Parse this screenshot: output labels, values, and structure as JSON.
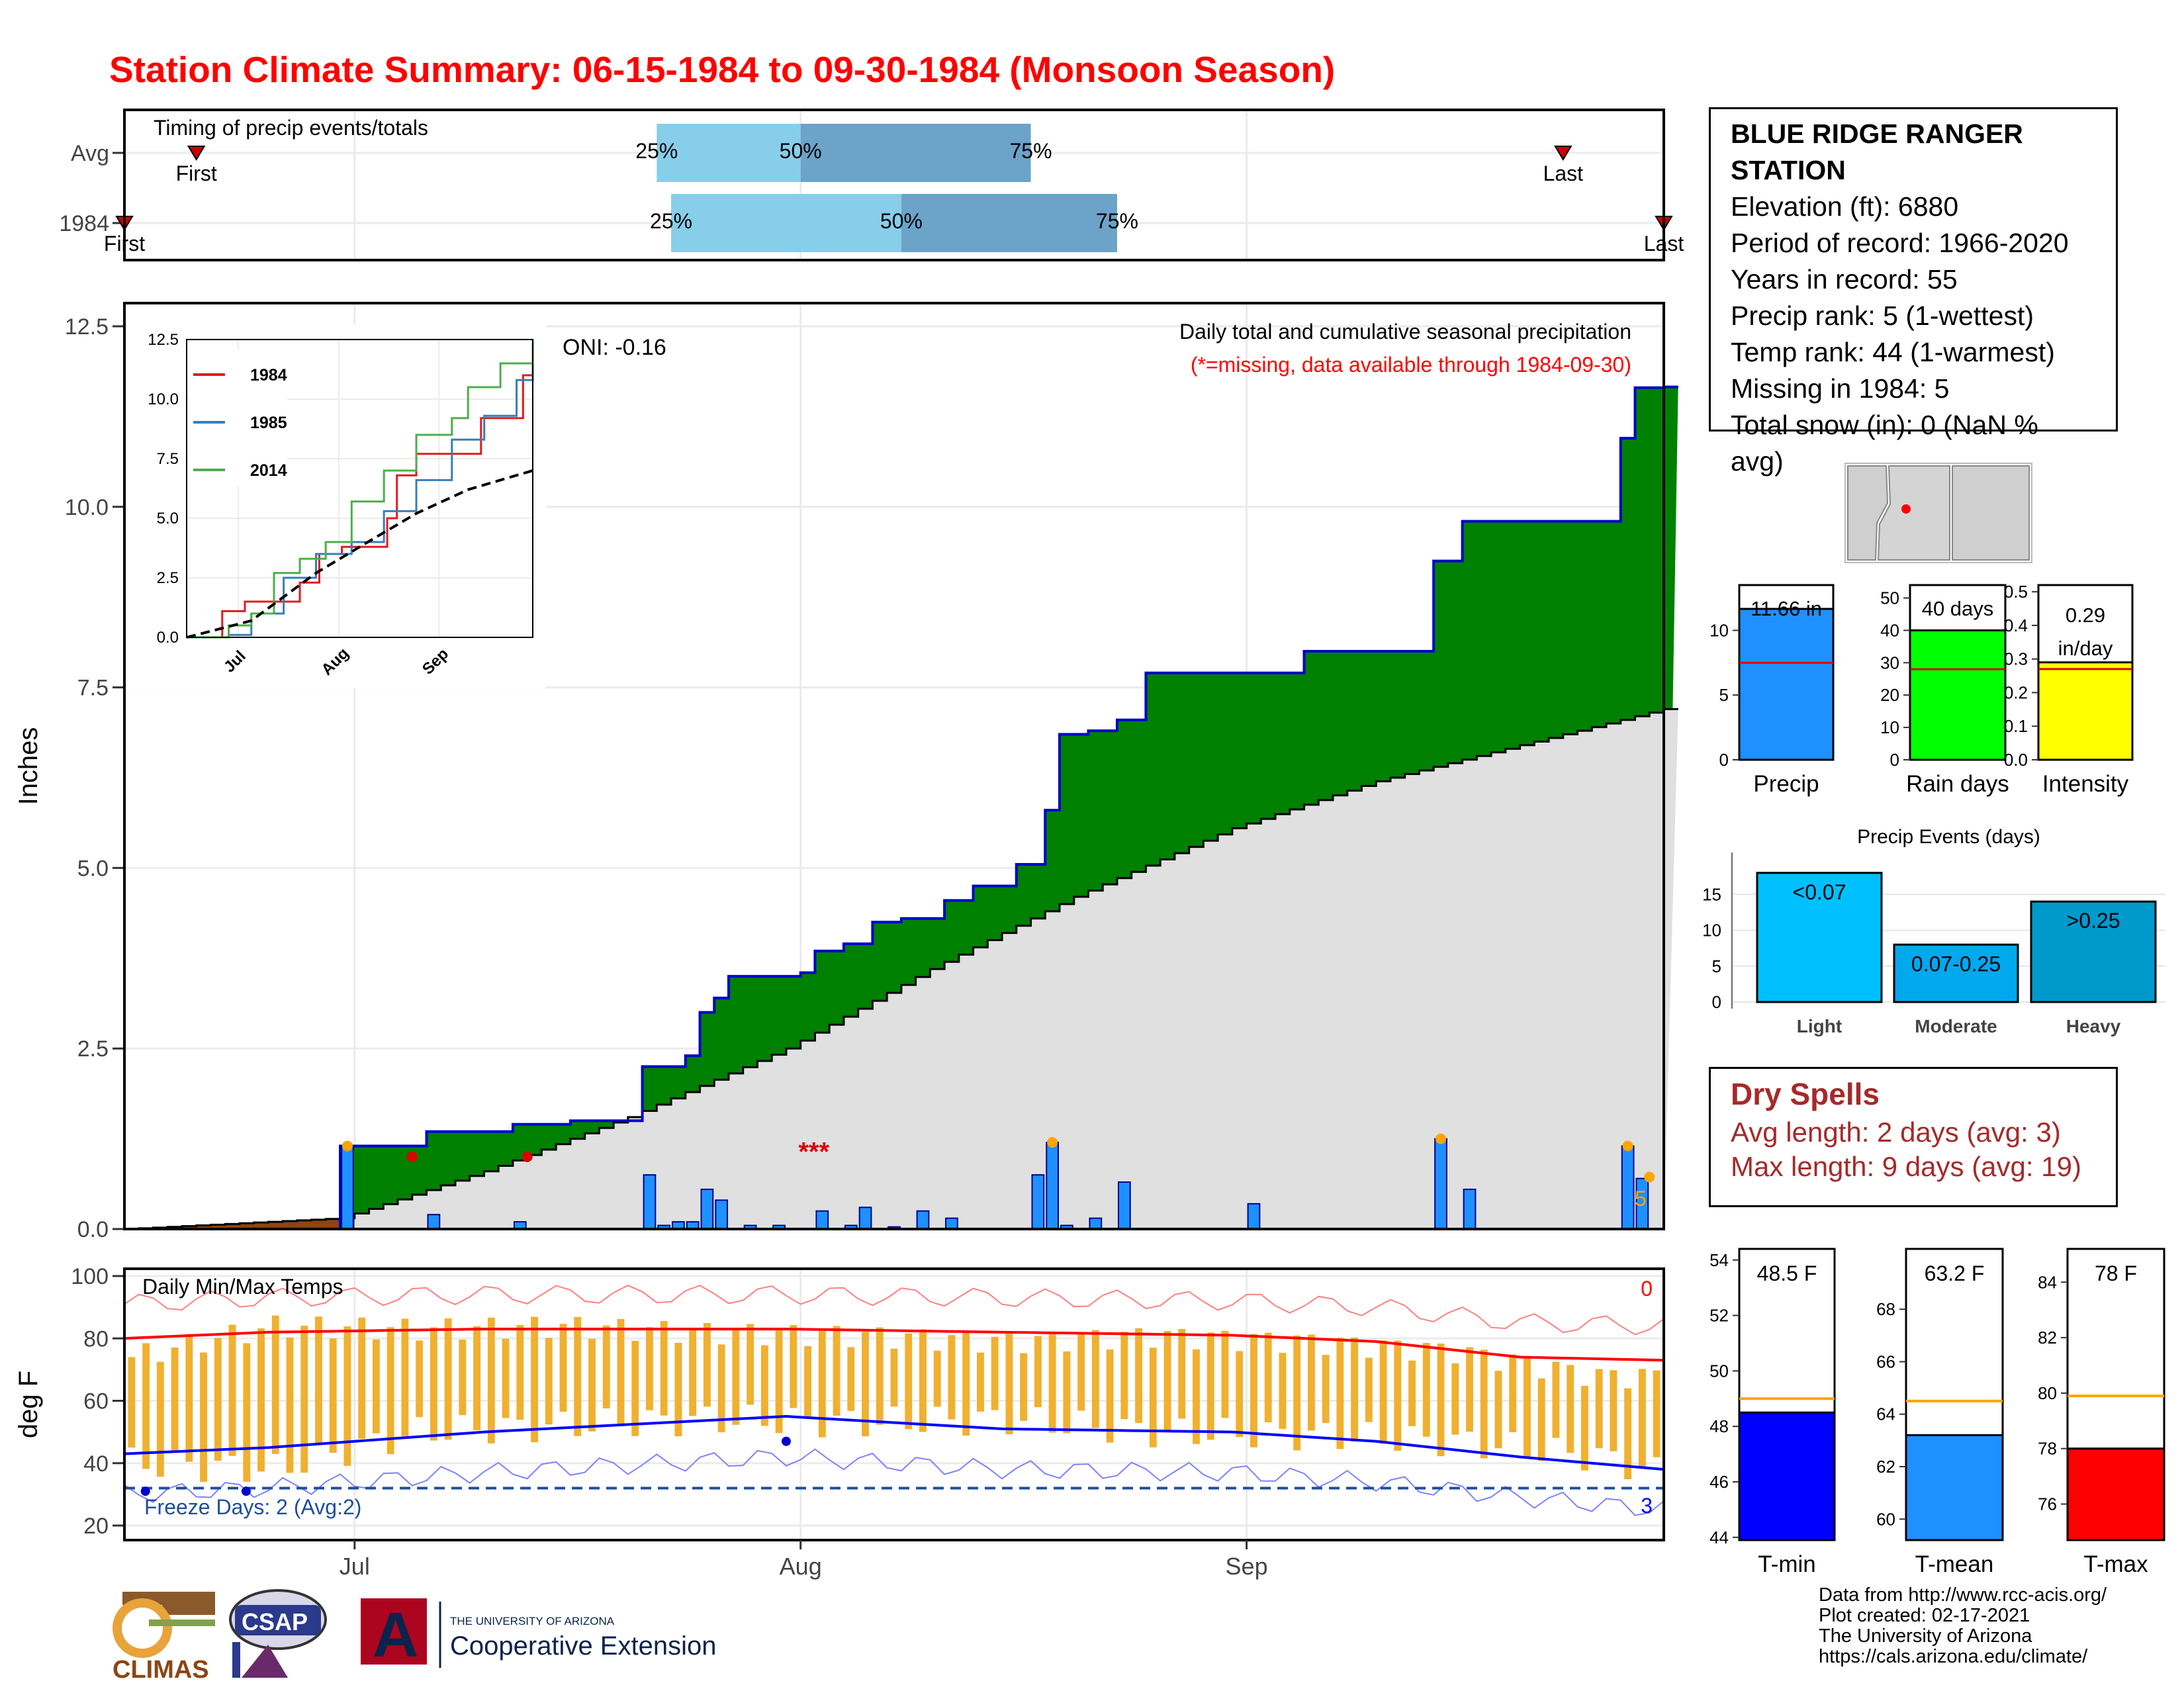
{
  "page": {
    "title": "Station Climate Summary: 06-15-1984 to 09-30-1984 (Monsoon Season)",
    "colors": {
      "title": "#ff0000",
      "precip_green": "#008000",
      "avg_fill": "#e0e0e0",
      "bar_blue": "#1e90ff",
      "tmax_red": "#ff0000",
      "tmin_blue": "#0000ff",
      "temp_bar": "#f0b030"
    }
  },
  "station": {
    "title_line1": "BLUE RIDGE RANGER",
    "title_line2": "STATION",
    "elevation": "Elevation (ft): 6880",
    "period": "Period of record: 1966-2020",
    "years": "Years in record: 55",
    "precip_rank": "Precip rank: 5 (1-wettest)",
    "temp_rank": "Temp rank: 44 (1-warmest)",
    "missing": "Missing in 1984: 5",
    "snow": "Total snow (in): 0 (NaN % avg)"
  },
  "dry_spells": {
    "title": "Dry Spells",
    "avg": "Avg length: 2 days (avg: 3)",
    "max": "Max length: 9 days (avg: 19)"
  },
  "credits": {
    "line1": "Data from http://www.rcc-acis.org/",
    "line2": "Plot created: 02-17-2021",
    "line3": "The University of Arizona",
    "line4": "https://cals.arizona.edu/climate/"
  },
  "logos": {
    "climas": "CLIMAS",
    "csap": "CSAP",
    "ua_line1": "THE UNIVERSITY OF ARIZONA",
    "ua_line2": "Cooperative Extension",
    "ua_letter": "A"
  },
  "chart_data": [
    {
      "id": "timing",
      "type": "bar",
      "title": "Timing of precip events/totals",
      "categories": [
        "Avg",
        "1984"
      ],
      "x_ticks": [
        "Jul",
        "Aug",
        "Sep"
      ],
      "quantile_labels": [
        "25%",
        "50%",
        "75%"
      ],
      "markers": [
        "First",
        "Last"
      ],
      "avg": {
        "first": "06-20",
        "q25": "07-22",
        "q50": "08-01",
        "q75": "08-17",
        "last": "09-23"
      },
      "year": {
        "first": "06-15",
        "q25": "07-23",
        "q50": "08-08",
        "q75": "08-23",
        "last": "09-30"
      }
    },
    {
      "id": "precip",
      "type": "area",
      "title": "Daily total and cumulative seasonal precipitation",
      "subtitle": "(*=missing, data available through 1984-09-30)",
      "oni": "ONI: -0.16",
      "ylabel": "Inches",
      "ylim": [
        0,
        12.5
      ],
      "y_ticks": [
        "0.0",
        "2.5",
        "5.0",
        "7.5",
        "10.0",
        "12.5"
      ],
      "x_ticks": [
        "Jul",
        "Aug",
        "Sep"
      ],
      "missing_marker": "***",
      "count_label": "5",
      "cumulative_1984": [
        [
          "06-15",
          0.0
        ],
        [
          "06-30",
          1.15
        ],
        [
          "07-05",
          1.15
        ],
        [
          "07-06",
          1.35
        ],
        [
          "07-12",
          1.45
        ],
        [
          "07-16",
          1.5
        ],
        [
          "07-21",
          2.25
        ],
        [
          "07-24",
          2.4
        ],
        [
          "07-25",
          3.0
        ],
        [
          "07-26",
          3.2
        ],
        [
          "07-27",
          3.5
        ],
        [
          "08-01",
          3.55
        ],
        [
          "08-02",
          3.85
        ],
        [
          "08-04",
          3.95
        ],
        [
          "08-06",
          4.25
        ],
        [
          "08-08",
          4.3
        ],
        [
          "08-11",
          4.55
        ],
        [
          "08-13",
          4.75
        ],
        [
          "08-16",
          5.05
        ],
        [
          "08-18",
          5.8
        ],
        [
          "08-19",
          6.85
        ],
        [
          "08-21",
          6.9
        ],
        [
          "08-23",
          7.05
        ],
        [
          "08-25",
          7.7
        ],
        [
          "09-05",
          8.0
        ],
        [
          "09-14",
          9.25
        ],
        [
          "09-16",
          9.8
        ],
        [
          "09-27",
          10.95
        ],
        [
          "09-28",
          11.65
        ],
        [
          "09-30",
          11.66
        ]
      ],
      "avg_cumulative": [
        [
          "06-15",
          0.0
        ],
        [
          "06-30",
          0.15
        ],
        [
          "07-10",
          0.8
        ],
        [
          "07-20",
          1.55
        ],
        [
          "07-31",
          2.5
        ],
        [
          "08-10",
          3.6
        ],
        [
          "08-20",
          4.6
        ],
        [
          "08-31",
          5.55
        ],
        [
          "09-10",
          6.2
        ],
        [
          "09-20",
          6.7
        ],
        [
          "09-30",
          7.2
        ]
      ],
      "daily_1984": [
        [
          "06-30",
          1.15
        ],
        [
          "07-06",
          0.2
        ],
        [
          "07-12",
          0.1
        ],
        [
          "07-21",
          0.75
        ],
        [
          "07-22",
          0.05
        ],
        [
          "07-23",
          0.1
        ],
        [
          "07-24",
          0.1
        ],
        [
          "07-25",
          0.55
        ],
        [
          "07-26",
          0.4
        ],
        [
          "07-28",
          0.05
        ],
        [
          "07-30",
          0.05
        ],
        [
          "08-02",
          0.25
        ],
        [
          "08-04",
          0.05
        ],
        [
          "08-05",
          0.3
        ],
        [
          "08-07",
          0.03
        ],
        [
          "08-09",
          0.25
        ],
        [
          "08-11",
          0.15
        ],
        [
          "08-17",
          0.75
        ],
        [
          "08-18",
          1.2
        ],
        [
          "08-19",
          0.05
        ],
        [
          "08-21",
          0.15
        ],
        [
          "08-23",
          0.65
        ],
        [
          "09-01",
          0.35
        ],
        [
          "09-14",
          1.25
        ],
        [
          "09-16",
          0.55
        ],
        [
          "09-27",
          1.15
        ],
        [
          "09-28",
          0.7
        ]
      ],
      "inset": {
        "ylim": [
          0,
          12.5
        ],
        "y_ticks": [
          "0.0",
          "2.5",
          "5.0",
          "7.5",
          "10.0",
          "12.5"
        ],
        "x_ticks": [
          "Jul",
          "Aug",
          "Sep"
        ],
        "series": [
          {
            "name": "1984",
            "color": "#e41a1c",
            "values": [
              [
                "06-15",
                0
              ],
              [
                "06-26",
                1.1
              ],
              [
                "07-03",
                1.5
              ],
              [
                "07-12",
                1.5
              ],
              [
                "07-20",
                2.3
              ],
              [
                "07-26",
                3.5
              ],
              [
                "08-02",
                3.8
              ],
              [
                "08-16",
                5.0
              ],
              [
                "08-19",
                6.8
              ],
              [
                "08-25",
                7.7
              ],
              [
                "09-14",
                9.2
              ],
              [
                "09-27",
                11.0
              ],
              [
                "09-30",
                11.7
              ]
            ]
          },
          {
            "name": "1985",
            "color": "#377eb8",
            "values": [
              [
                "06-15",
                0
              ],
              [
                "06-28",
                0.1
              ],
              [
                "07-05",
                1.0
              ],
              [
                "07-15",
                2.5
              ],
              [
                "07-25",
                3.5
              ],
              [
                "08-05",
                4.0
              ],
              [
                "08-15",
                5.3
              ],
              [
                "08-25",
                6.6
              ],
              [
                "09-05",
                8.3
              ],
              [
                "09-15",
                9.3
              ],
              [
                "09-25",
                10.8
              ],
              [
                "09-30",
                11.6
              ]
            ]
          },
          {
            "name": "2014",
            "color": "#4daf4a",
            "values": [
              [
                "06-15",
                0
              ],
              [
                "06-28",
                0.5
              ],
              [
                "07-05",
                1.0
              ],
              [
                "07-12",
                2.7
              ],
              [
                "07-20",
                3.3
              ],
              [
                "07-28",
                4.0
              ],
              [
                "08-05",
                5.7
              ],
              [
                "08-15",
                7.0
              ],
              [
                "08-25",
                8.5
              ],
              [
                "09-05",
                9.2
              ],
              [
                "09-10",
                10.5
              ],
              [
                "09-20",
                11.5
              ],
              [
                "09-30",
                12.5
              ]
            ]
          }
        ],
        "avg": [
          [
            "06-15",
            0
          ],
          [
            "07-05",
            0.7
          ],
          [
            "07-25",
            2.7
          ],
          [
            "08-10",
            4.0
          ],
          [
            "08-25",
            5.2
          ],
          [
            "09-10",
            6.2
          ],
          [
            "09-30",
            7.0
          ]
        ]
      }
    },
    {
      "id": "temps",
      "type": "line",
      "title": "Daily Min/Max Temps",
      "ylabel": "deg F",
      "ylim": [
        17,
        101
      ],
      "y_ticks": [
        "20",
        "40",
        "60",
        "80",
        "100"
      ],
      "x_ticks": [
        "Jul",
        "Aug",
        "Sep"
      ],
      "freeze_label": "Freeze Days: 2 (Avg:2)",
      "hot_count": "0",
      "cold_count": "3",
      "freeze_line": 32,
      "avg_max": [
        [
          "06-15",
          80
        ],
        [
          "06-25",
          82
        ],
        [
          "07-10",
          83
        ],
        [
          "07-31",
          83
        ],
        [
          "08-15",
          82
        ],
        [
          "08-31",
          81
        ],
        [
          "09-10",
          79
        ],
        [
          "09-20",
          74
        ],
        [
          "09-30",
          73
        ]
      ],
      "avg_min": [
        [
          "06-15",
          43
        ],
        [
          "06-25",
          45
        ],
        [
          "07-10",
          50
        ],
        [
          "07-31",
          55
        ],
        [
          "08-15",
          51
        ],
        [
          "08-31",
          50
        ],
        [
          "09-10",
          47
        ],
        [
          "09-20",
          42
        ],
        [
          "09-30",
          38
        ]
      ],
      "daily_range_series": [
        {
          "name": "tmax",
          "values": [
            [
              "06-15",
              74
            ],
            [
              "06-25",
              84
            ],
            [
              "07-05",
              83
            ],
            [
              "07-15",
              84
            ],
            [
              "07-25",
              82
            ],
            [
              "08-05",
              81
            ],
            [
              "08-15",
              79
            ],
            [
              "08-25",
              81
            ],
            [
              "09-05",
              79
            ],
            [
              "09-15",
              76
            ],
            [
              "09-25",
              68
            ],
            [
              "09-30",
              68
            ]
          ]
        },
        {
          "name": "tmin",
          "values": [
            [
              "06-15",
              40
            ],
            [
              "06-25",
              38
            ],
            [
              "07-05",
              50
            ],
            [
              "07-15",
              52
            ],
            [
              "07-25",
              54
            ],
            [
              "08-05",
              53
            ],
            [
              "08-15",
              54
            ],
            [
              "08-25",
              50
            ],
            [
              "09-05",
              49
            ],
            [
              "09-15",
              47
            ],
            [
              "09-25",
              42
            ],
            [
              "09-30",
              36
            ]
          ]
        }
      ]
    },
    {
      "id": "totals",
      "type": "bar",
      "panels": [
        {
          "label": "Precip",
          "value_label": "11.66 in",
          "value": 11.66,
          "avg": 7.5,
          "ylim": [
            0,
            13.5
          ],
          "ticks": [
            "0",
            "5",
            "10"
          ],
          "color": "#1e90ff"
        },
        {
          "label": "Rain days",
          "value_label": "40 days",
          "value": 40,
          "avg": 28,
          "ylim": [
            0,
            54
          ],
          "ticks": [
            "0",
            "10",
            "20",
            "30",
            "40",
            "50"
          ],
          "color": "#00ff00"
        },
        {
          "label": "Intensity",
          "value_label_1": "0.29",
          "value_label_2": "in/day",
          "value": 0.29,
          "avg": 0.27,
          "ylim": [
            0,
            0.52
          ],
          "ticks": [
            "0.0",
            "0.1",
            "0.2",
            "0.3",
            "0.4",
            "0.5"
          ],
          "color": "#ffff00"
        }
      ]
    },
    {
      "id": "events",
      "type": "bar",
      "title": "Precip Events (days)",
      "categories": [
        "Light",
        "Moderate",
        "Heavy"
      ],
      "bar_labels": [
        "<0.07",
        "0.07-0.25",
        ">0.25"
      ],
      "values": [
        18,
        8,
        14
      ],
      "ylim": [
        0,
        19
      ],
      "ticks": [
        "0",
        "5",
        "10",
        "15"
      ]
    },
    {
      "id": "temp_summary",
      "type": "bar",
      "panels": [
        {
          "label": "T-min",
          "value_label": "48.5 F",
          "value": 48.5,
          "avg": 49.0,
          "ylim": [
            43.9,
            54.4
          ],
          "ticks": [
            "44",
            "46",
            "48",
            "50",
            "52",
            "54"
          ],
          "color": "#0000ff"
        },
        {
          "label": "T-mean",
          "value_label": "63.2 F",
          "value": 63.2,
          "avg": 64.5,
          "ylim": [
            59.2,
            70.3
          ],
          "ticks": [
            "60",
            "62",
            "64",
            "66",
            "68"
          ],
          "color": "#1e90ff"
        },
        {
          "label": "T-max",
          "value_label": "78 F",
          "value": 78.0,
          "avg": 79.9,
          "ylim": [
            74.7,
            85.2
          ],
          "ticks": [
            "76",
            "78",
            "80",
            "82",
            "84"
          ],
          "color": "#ff0000"
        }
      ]
    }
  ]
}
